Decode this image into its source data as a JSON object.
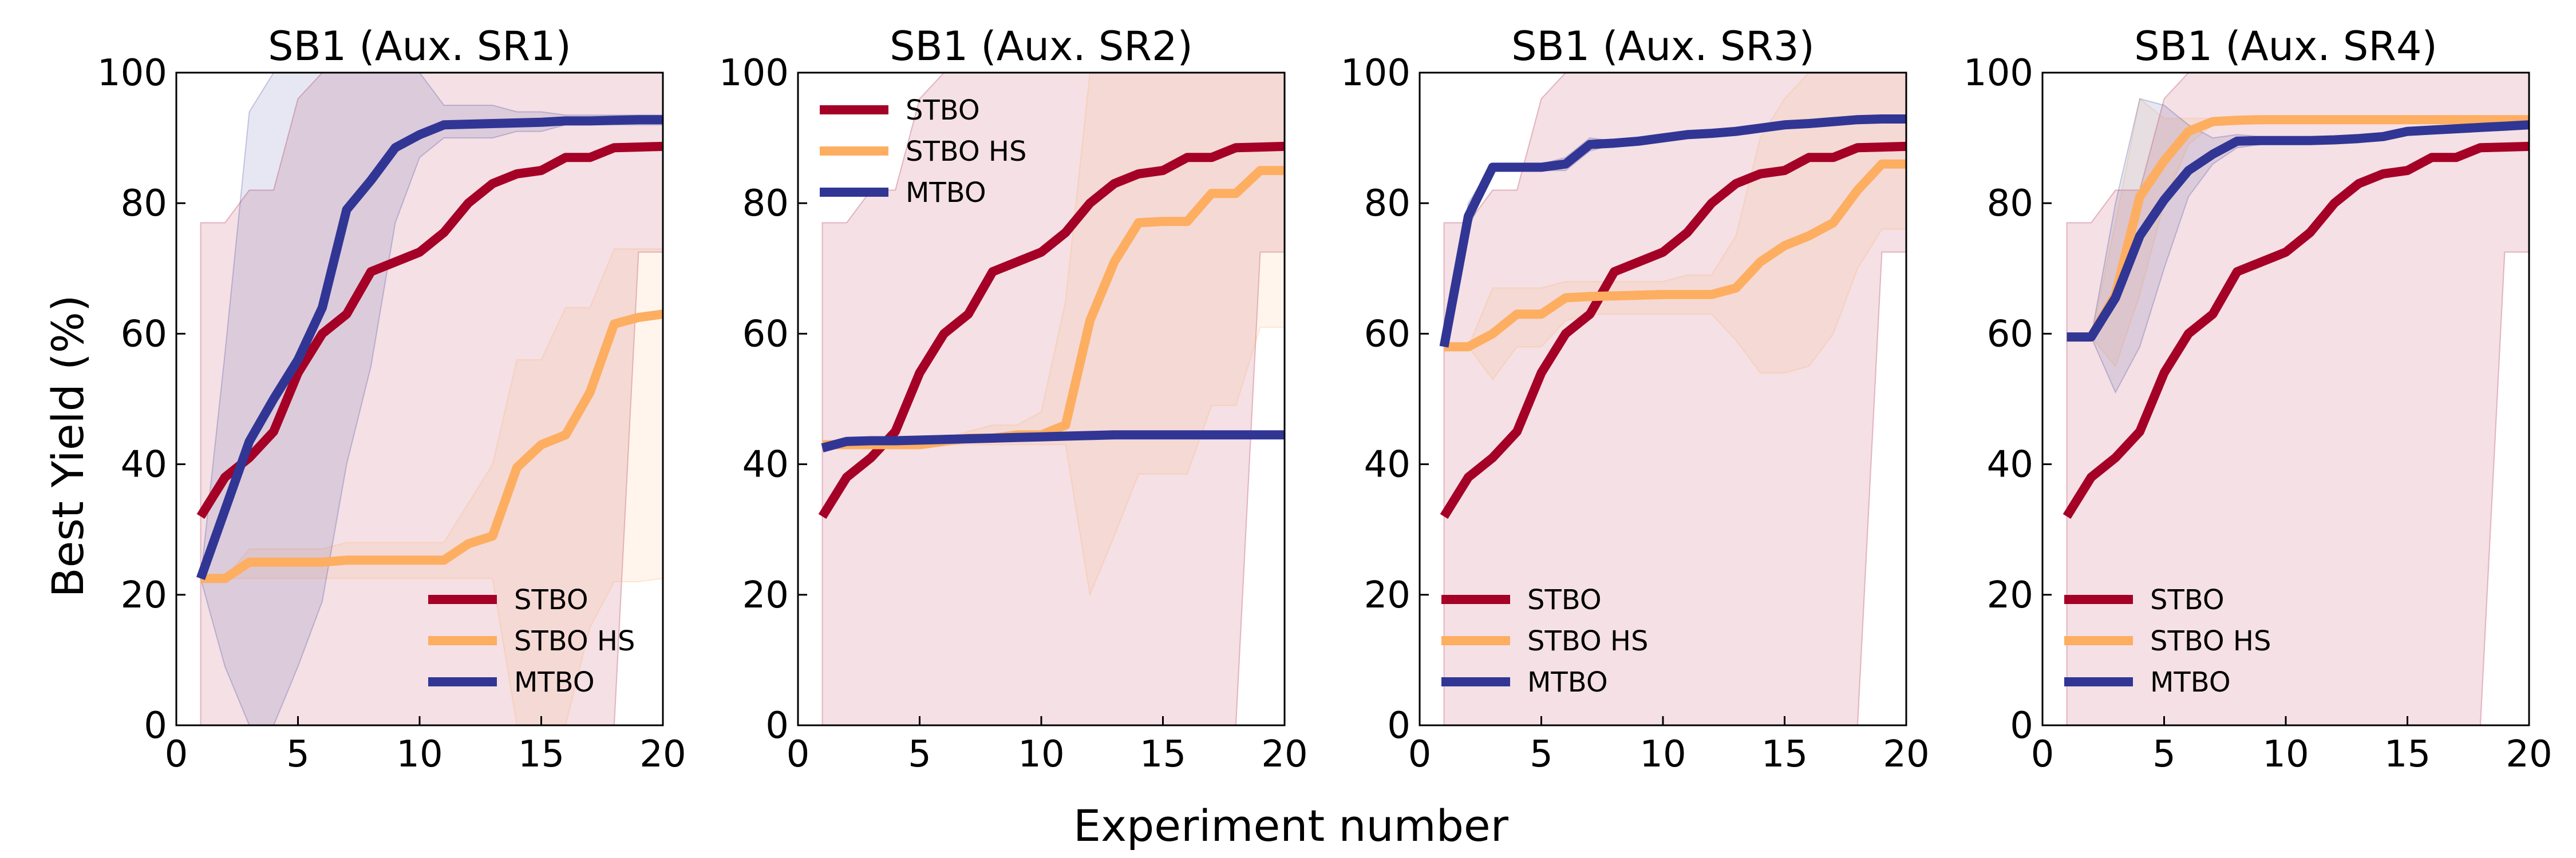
{
  "figure": {
    "ylabel": "Best Yield (%)",
    "xlabel": "Experiment number"
  },
  "colors": {
    "STBO": "#a50026",
    "STBO HS": "#fdae61",
    "MTBO": "#313695"
  },
  "chart_data": [
    {
      "type": "line",
      "title": "SB1 (Aux. SR1)",
      "xlim": [
        0,
        20
      ],
      "ylim": [
        0,
        100
      ],
      "xticks": [
        0,
        5,
        10,
        15,
        20
      ],
      "yticks": [
        0,
        20,
        40,
        60,
        80,
        100
      ],
      "legend_position": "lower-right",
      "x": [
        1,
        2,
        3,
        4,
        5,
        6,
        7,
        8,
        9,
        10,
        11,
        12,
        13,
        14,
        15,
        16,
        17,
        18,
        19,
        20
      ],
      "series": [
        {
          "name": "STBO",
          "values": [
            32,
            38,
            41,
            45,
            54,
            60,
            63,
            69.5,
            71,
            72.5,
            75.5,
            80,
            83,
            84.5,
            85,
            87,
            87,
            88.5,
            88.6,
            88.7
          ],
          "lower": [
            0,
            0,
            0,
            0,
            0,
            0,
            0,
            0,
            0,
            0,
            0,
            0,
            0,
            0,
            0,
            0,
            0,
            0,
            72.5,
            72.5
          ],
          "upper": [
            77,
            77,
            82,
            82,
            96,
            100,
            100,
            100,
            100,
            100,
            100,
            100,
            100,
            100,
            100,
            100,
            100,
            100,
            100,
            100
          ]
        },
        {
          "name": "STBO HS",
          "values": [
            22.5,
            22.5,
            25,
            25,
            25,
            25,
            25.3,
            25.3,
            25.3,
            25.3,
            25.3,
            27.8,
            29,
            39.5,
            43,
            44.5,
            51,
            61.5,
            62.5,
            63
          ],
          "lower": [
            22.5,
            22.5,
            22.5,
            22.5,
            22.5,
            22.5,
            22.5,
            22.5,
            22.5,
            22.5,
            22.5,
            22.5,
            22.5,
            0,
            0,
            0,
            15,
            22,
            22,
            22.5
          ],
          "upper": [
            22.5,
            22.5,
            27,
            27,
            27,
            27,
            28,
            28,
            28,
            28,
            28,
            34,
            40,
            56,
            56,
            64,
            64,
            73,
            73,
            73
          ]
        },
        {
          "name": "MTBO",
          "values": [
            22.5,
            33,
            43.5,
            50,
            56,
            64,
            79,
            83.5,
            88.5,
            90.5,
            92,
            92.1,
            92.2,
            92.3,
            92.4,
            92.6,
            92.6,
            92.7,
            92.8,
            92.8
          ],
          "lower": [
            22.5,
            9,
            0,
            0,
            9,
            19,
            40,
            55,
            77,
            87,
            90,
            90,
            90,
            91,
            91,
            92,
            92,
            92,
            92,
            92
          ],
          "upper": [
            22.5,
            57,
            94,
            100,
            100,
            100,
            100,
            100,
            100,
            100,
            95,
            95,
            95,
            94,
            94,
            93.5,
            93.5,
            93.5,
            93.5,
            93.5
          ]
        }
      ]
    },
    {
      "type": "line",
      "title": "SB1 (Aux. SR2)",
      "xlim": [
        0,
        20
      ],
      "ylim": [
        0,
        100
      ],
      "xticks": [
        0,
        5,
        10,
        15,
        20
      ],
      "yticks": [
        0,
        20,
        40,
        60,
        80,
        100
      ],
      "legend_position": "upper-left",
      "x": [
        1,
        2,
        3,
        4,
        5,
        6,
        7,
        8,
        9,
        10,
        11,
        12,
        13,
        14,
        15,
        16,
        17,
        18,
        19,
        20
      ],
      "series": [
        {
          "name": "STBO",
          "values": [
            32,
            38,
            41,
            45,
            54,
            60,
            63,
            69.5,
            71,
            72.5,
            75.5,
            80,
            83,
            84.5,
            85,
            87,
            87,
            88.5,
            88.6,
            88.7
          ],
          "lower": [
            0,
            0,
            0,
            0,
            0,
            0,
            0,
            0,
            0,
            0,
            0,
            0,
            0,
            0,
            0,
            0,
            0,
            0,
            72.5,
            72.5
          ],
          "upper": [
            77,
            77,
            82,
            82,
            96,
            100,
            100,
            100,
            100,
            100,
            100,
            100,
            100,
            100,
            100,
            100,
            100,
            100,
            100,
            100
          ]
        },
        {
          "name": "STBO HS",
          "values": [
            43,
            43,
            43,
            43,
            43,
            43.5,
            44,
            44,
            44.5,
            44.5,
            46,
            62,
            71,
            77,
            77.2,
            77.2,
            81.5,
            81.5,
            85,
            85
          ],
          "lower": [
            43,
            43,
            43,
            43,
            43,
            43,
            43,
            43,
            43,
            43,
            43,
            20,
            29,
            38.5,
            38.5,
            38.5,
            49,
            49,
            61,
            61
          ],
          "upper": [
            43,
            43,
            43,
            43,
            43,
            44,
            45,
            46,
            46,
            48,
            65,
            100,
            100,
            100,
            100,
            100,
            100,
            100,
            100,
            100
          ]
        },
        {
          "name": "MTBO",
          "values": [
            42.5,
            43.5,
            43.6,
            43.6,
            43.7,
            43.8,
            43.9,
            44,
            44.1,
            44.2,
            44.3,
            44.4,
            44.5,
            44.5,
            44.5,
            44.5,
            44.5,
            44.5,
            44.5,
            44.5
          ],
          "lower": [
            42.5,
            43.5,
            43.6,
            43.6,
            43.7,
            43.8,
            43.9,
            44,
            44.1,
            44.2,
            44.3,
            44.4,
            44.5,
            44.5,
            44.5,
            44.5,
            44.5,
            44.5,
            44.5,
            44.5
          ],
          "upper": [
            42.5,
            43.5,
            43.6,
            43.6,
            43.7,
            43.8,
            43.9,
            44,
            44.1,
            44.2,
            44.3,
            44.4,
            44.5,
            44.5,
            44.5,
            44.5,
            44.5,
            44.5,
            44.5,
            44.5
          ]
        }
      ]
    },
    {
      "type": "line",
      "title": "SB1 (Aux. SR3)",
      "xlim": [
        0,
        20
      ],
      "ylim": [
        0,
        100
      ],
      "xticks": [
        0,
        5,
        10,
        15,
        20
      ],
      "yticks": [
        0,
        20,
        40,
        60,
        80,
        100
      ],
      "legend_position": "lower-left",
      "x": [
        1,
        2,
        3,
        4,
        5,
        6,
        7,
        8,
        9,
        10,
        11,
        12,
        13,
        14,
        15,
        16,
        17,
        18,
        19,
        20
      ],
      "series": [
        {
          "name": "STBO",
          "values": [
            32,
            38,
            41,
            45,
            54,
            60,
            63,
            69.5,
            71,
            72.5,
            75.5,
            80,
            83,
            84.5,
            85,
            87,
            87,
            88.5,
            88.6,
            88.7
          ],
          "lower": [
            0,
            0,
            0,
            0,
            0,
            0,
            0,
            0,
            0,
            0,
            0,
            0,
            0,
            0,
            0,
            0,
            0,
            0,
            72.5,
            72.5
          ],
          "upper": [
            77,
            77,
            82,
            82,
            96,
            100,
            100,
            100,
            100,
            100,
            100,
            100,
            100,
            100,
            100,
            100,
            100,
            100,
            100,
            100
          ]
        },
        {
          "name": "STBO HS",
          "values": [
            58,
            58,
            60,
            63,
            63,
            65.5,
            65.7,
            65.8,
            65.9,
            66,
            66,
            66,
            67,
            71,
            73.5,
            75,
            77,
            82,
            86,
            86
          ],
          "lower": [
            58,
            58,
            53,
            58,
            58,
            62,
            63,
            63,
            63,
            63,
            63,
            63,
            59,
            54,
            54,
            55,
            60,
            70,
            76,
            76
          ],
          "upper": [
            58,
            58,
            67,
            67,
            67,
            68,
            68,
            68,
            68,
            68,
            69,
            69,
            75,
            90,
            96,
            100,
            100,
            100,
            100,
            100
          ]
        },
        {
          "name": "MTBO",
          "values": [
            58,
            78,
            85.5,
            85.5,
            85.5,
            86,
            89,
            89.2,
            89.5,
            90,
            90.5,
            90.7,
            91,
            91.5,
            92,
            92.2,
            92.5,
            92.8,
            92.9,
            92.9
          ],
          "lower": [
            58,
            76,
            85,
            85,
            85,
            85,
            88,
            89,
            89,
            89.5,
            90,
            90.3,
            90.5,
            91,
            91.5,
            91.8,
            92,
            92.5,
            92.6,
            92.6
          ],
          "upper": [
            58,
            80,
            86,
            86,
            86,
            87,
            90,
            89.5,
            90,
            90.5,
            91,
            91.1,
            91.5,
            92,
            92.5,
            92.6,
            93,
            93.1,
            93.2,
            93.2
          ]
        }
      ]
    },
    {
      "type": "line",
      "title": "SB1 (Aux. SR4)",
      "xlim": [
        0,
        20
      ],
      "ylim": [
        0,
        100
      ],
      "xticks": [
        0,
        5,
        10,
        15,
        20
      ],
      "yticks": [
        0,
        20,
        40,
        60,
        80,
        100
      ],
      "legend_position": "lower-left",
      "x": [
        1,
        2,
        3,
        4,
        5,
        6,
        7,
        8,
        9,
        10,
        11,
        12,
        13,
        14,
        15,
        16,
        17,
        18,
        19,
        20
      ],
      "series": [
        {
          "name": "STBO",
          "values": [
            32,
            38,
            41,
            45,
            54,
            60,
            63,
            69.5,
            71,
            72.5,
            75.5,
            80,
            83,
            84.5,
            85,
            87,
            87,
            88.5,
            88.6,
            88.7
          ],
          "lower": [
            0,
            0,
            0,
            0,
            0,
            0,
            0,
            0,
            0,
            0,
            0,
            0,
            0,
            0,
            0,
            0,
            0,
            0,
            72.5,
            72.5
          ],
          "upper": [
            77,
            77,
            82,
            82,
            96,
            100,
            100,
            100,
            100,
            100,
            100,
            100,
            100,
            100,
            100,
            100,
            100,
            100,
            100,
            100
          ]
        },
        {
          "name": "STBO HS",
          "values": [
            59.5,
            59.5,
            66,
            81,
            86.5,
            91,
            92.5,
            92.7,
            92.8,
            92.8,
            92.8,
            92.8,
            92.8,
            92.8,
            92.8,
            92.8,
            92.8,
            92.8,
            92.8,
            92.8
          ],
          "lower": [
            59.5,
            59.5,
            55,
            66,
            80,
            89,
            92,
            92.5,
            92.6,
            92.6,
            92.6,
            92.6,
            92.6,
            92.6,
            92.6,
            92.6,
            92.6,
            92.6,
            92.6,
            92.6
          ],
          "upper": [
            59.5,
            59.5,
            77,
            96,
            93,
            93,
            93,
            93,
            93,
            93,
            93,
            93,
            93,
            93,
            93,
            93,
            93,
            93,
            93,
            93
          ]
        },
        {
          "name": "MTBO",
          "values": [
            59.5,
            59.5,
            65.5,
            75,
            80.5,
            85,
            87.5,
            89.5,
            89.6,
            89.6,
            89.6,
            89.7,
            89.9,
            90.2,
            91,
            91.2,
            91.4,
            91.6,
            91.8,
            92
          ],
          "lower": [
            59.5,
            59.5,
            51,
            58,
            70,
            81,
            86,
            88.5,
            89,
            89,
            89,
            89.2,
            89.5,
            89.8,
            90.5,
            90.8,
            91,
            91.2,
            91.5,
            91.7
          ],
          "upper": [
            59.5,
            59.5,
            80,
            96,
            95,
            92,
            90,
            90.5,
            90.2,
            90.2,
            90.2,
            90.2,
            90.3,
            90.6,
            91.5,
            91.6,
            91.8,
            92,
            92.1,
            92.3
          ]
        }
      ]
    }
  ]
}
